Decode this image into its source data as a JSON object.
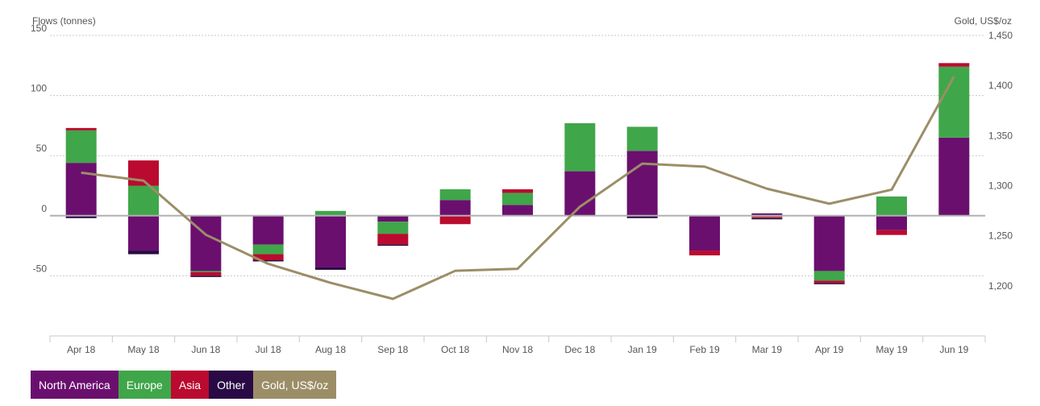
{
  "chart_data": {
    "type": "bar",
    "stacked": true,
    "y_left_label": "Flows (tonnes)",
    "y_right_label": "Gold, US$/oz",
    "y_left_ticks": [
      "150",
      "100",
      "50",
      "0",
      "-50"
    ],
    "y_right_ticks": [
      "1,450",
      "1,400",
      "1,350",
      "1,300",
      "1,250",
      "1,200"
    ],
    "ylim_left": [
      -100,
      150
    ],
    "ylim_right": [
      1150,
      1450
    ],
    "categories": [
      "Apr 18",
      "May 18",
      "Jun 18",
      "Jul 18",
      "Aug 18",
      "Sep 18",
      "Oct 18",
      "Nov 18",
      "Dec 18",
      "Jan 19",
      "Feb 19",
      "Mar 19",
      "Apr 19",
      "May 19",
      "Jun 19"
    ],
    "series": [
      {
        "name": "North America",
        "color": "#6b0f6f",
        "values": [
          44,
          -29,
          -46,
          -24,
          -43,
          -5,
          13,
          9,
          37,
          54,
          -29,
          2,
          -46,
          -12,
          65
        ]
      },
      {
        "name": "Europe",
        "color": "#40a64a",
        "values": [
          27,
          25,
          -1,
          -8,
          4,
          -10,
          9,
          10,
          40,
          20,
          0,
          -1,
          -8,
          16,
          59
        ]
      },
      {
        "name": "Asia",
        "color": "#bb0a2f",
        "values": [
          2,
          21,
          -3,
          -5,
          0,
          -9,
          -7,
          3,
          0,
          0,
          -4,
          -1,
          -2,
          -4,
          3
        ]
      },
      {
        "name": "Other",
        "color": "#2a0a45",
        "values": [
          -2,
          -3,
          -1,
          -1,
          -2,
          -1,
          0,
          0,
          0,
          -2,
          0,
          -1,
          -1,
          0,
          0
        ]
      }
    ],
    "line": {
      "name": "Gold, US$/oz",
      "color": "#9b8e67",
      "axis": "right",
      "values": [
        1313,
        1305,
        1251,
        1222,
        1203,
        1187,
        1215,
        1217,
        1279,
        1322,
        1319,
        1297,
        1282,
        1296,
        1409
      ]
    },
    "grid": true,
    "legend_position": "bottom-left"
  }
}
